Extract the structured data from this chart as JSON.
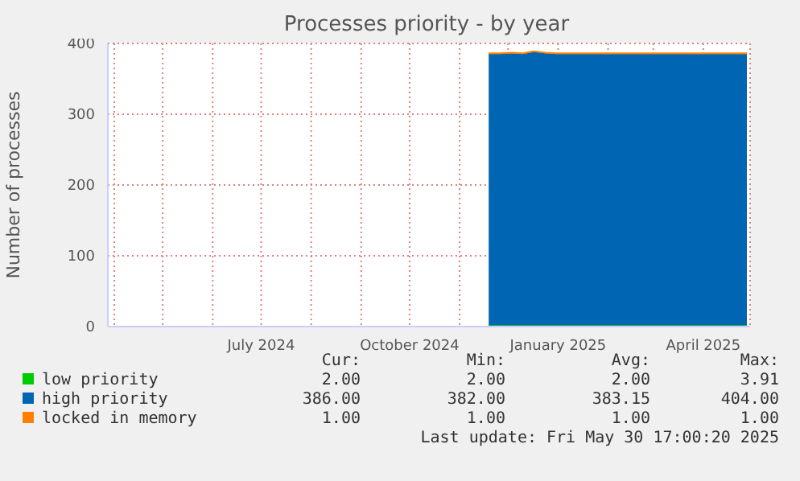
{
  "chart_data": {
    "type": "area",
    "title": "Processes priority - by year",
    "ylabel": "Number of processes",
    "stacked": true,
    "grid": true,
    "legend": "bottom",
    "marker": "none",
    "x": [
      "2024-11-19",
      "2024-11-26",
      "2024-12-03",
      "2024-12-10",
      "2024-12-17",
      "2024-12-24",
      "2024-12-31",
      "2025-01-07",
      "2025-01-14",
      "2025-01-21",
      "2025-01-28",
      "2025-02-04",
      "2025-02-11",
      "2025-02-18",
      "2025-02-25",
      "2025-03-04",
      "2025-03-11",
      "2025-03-18",
      "2025-03-25",
      "2025-04-01",
      "2025-04-08",
      "2025-04-15",
      "2025-04-22",
      "2025-04-28"
    ],
    "series": [
      {
        "name": "low priority",
        "color": "#00cc00",
        "values": [
          2,
          2,
          2,
          2,
          2,
          2,
          2,
          2,
          2,
          2,
          2,
          2,
          2,
          2,
          2,
          2,
          2,
          2,
          2,
          2,
          2,
          2,
          2,
          2
        ]
      },
      {
        "name": "high priority",
        "color": "#0066b3",
        "values": [
          383,
          383,
          384,
          383,
          386,
          384,
          383,
          383,
          383,
          383,
          383,
          383,
          383,
          383,
          383,
          383,
          383,
          383,
          383,
          383,
          383,
          383,
          383,
          383
        ]
      },
      {
        "name": "locked in memory",
        "color": "#ff8000",
        "values": [
          1,
          1,
          1,
          1,
          1,
          1,
          1,
          1,
          1,
          1,
          1,
          1,
          1,
          1,
          1,
          1,
          1,
          1,
          1,
          1,
          1,
          1,
          1,
          1
        ]
      }
    ],
    "xlim": [
      "2024-03-28",
      "2025-04-30"
    ],
    "xticks": [
      {
        "value": "2024-04-01",
        "label": null
      },
      {
        "value": "2024-05-01",
        "label": null
      },
      {
        "value": "2024-06-01",
        "label": null
      },
      {
        "value": "2024-07-01",
        "label": "July 2024"
      },
      {
        "value": "2024-08-01",
        "label": null
      },
      {
        "value": "2024-09-01",
        "label": null
      },
      {
        "value": "2024-10-01",
        "label": "October 2024"
      },
      {
        "value": "2024-11-01",
        "label": null
      },
      {
        "value": "2024-12-01",
        "label": null
      },
      {
        "value": "2025-01-01",
        "label": "January 2025"
      },
      {
        "value": "2025-02-01",
        "label": null
      },
      {
        "value": "2025-03-01",
        "label": null
      },
      {
        "value": "2025-04-01",
        "label": "April 2025"
      }
    ],
    "ylim": [
      0,
      400
    ],
    "yticks": [
      0,
      100,
      200,
      300,
      400
    ],
    "annotations": [
      "Cur:",
      "Min:",
      "Avg:",
      "Max:",
      "2.00",
      "2.00",
      "2.00",
      "3.91",
      "386.00",
      "382.00",
      "383.15",
      "404.00",
      "1.00",
      "1.00",
      "1.00",
      "1.00",
      "Last update: Fri May 30 17:00:20 2025"
    ]
  }
}
